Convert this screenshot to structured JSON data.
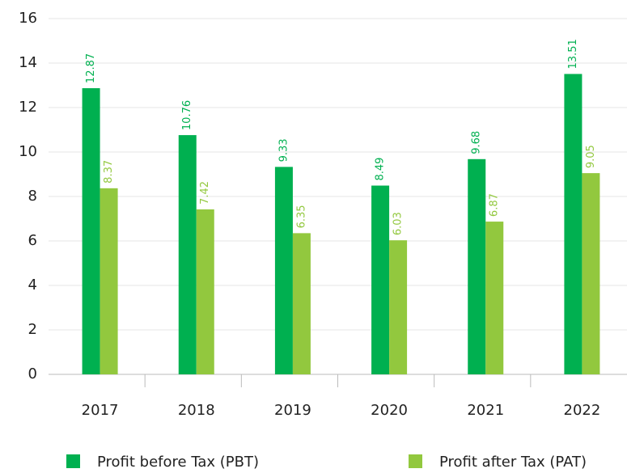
{
  "chart_data": {
    "type": "bar",
    "categories": [
      "2017",
      "2018",
      "2019",
      "2020",
      "2021",
      "2022"
    ],
    "series": [
      {
        "name": "Profit before Tax (PBT)",
        "color": "#00b050",
        "values": [
          12.87,
          10.76,
          9.33,
          8.49,
          9.68,
          13.51
        ]
      },
      {
        "name": "Profit after Tax (PAT)",
        "color": "#92c83e",
        "values": [
          8.37,
          7.42,
          6.35,
          6.03,
          6.87,
          9.05
        ]
      }
    ],
    "ylim": [
      0,
      16
    ],
    "yticks": [
      0,
      2,
      4,
      6,
      8,
      10,
      12,
      14,
      16
    ],
    "grid": true,
    "legend": "bottom"
  }
}
